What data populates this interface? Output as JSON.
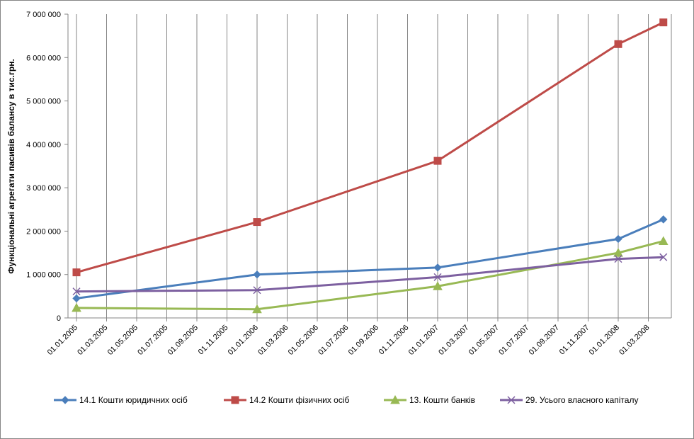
{
  "chart_data": {
    "type": "line",
    "title": "",
    "xlabel": "",
    "ylabel": "Функціональні агрегати пасивів балансу в тис.грн.",
    "x_ticks": [
      "01.01.2005",
      "01.03.2005",
      "01.05.2005",
      "01.07.2005",
      "01.09.2005",
      "01.11.2005",
      "01.01.2006",
      "01.03.2006",
      "01.05.2006",
      "01.07.2006",
      "01.09.2006",
      "01.11.2006",
      "01.01.2007",
      "01.03.2007",
      "01.05.2007",
      "01.07.2007",
      "01.09.2007",
      "01.11.2007",
      "01.01.2008",
      "01.03.2008"
    ],
    "y_ticks": [
      "0",
      "1 000 000",
      "2 000 000",
      "3 000 000",
      "4 000 000",
      "5 000 000",
      "6 000 000",
      "7 000 000"
    ],
    "ylim": [
      0,
      7000000
    ],
    "grid": "vertical",
    "legend_position": "bottom",
    "x": [
      "01.01.2005",
      "01.01.2006",
      "01.01.2007",
      "01.01.2008",
      "01.04.2008"
    ],
    "series": [
      {
        "name": "14.1 Кошти юридичних осіб",
        "color": "#4a7ebb",
        "marker": "diamond",
        "values": [
          450000,
          1000000,
          1160000,
          1820000,
          2270000
        ]
      },
      {
        "name": "14.2 Кошти фізичних осіб",
        "color": "#be4b48",
        "marker": "square",
        "values": [
          1050000,
          2210000,
          3620000,
          6310000,
          6810000
        ]
      },
      {
        "name": "13. Кошти банків",
        "color": "#98b954",
        "marker": "triangle",
        "values": [
          230000,
          200000,
          730000,
          1500000,
          1770000
        ]
      },
      {
        "name": "29. Усього власного капіталу",
        "color": "#7d60a0",
        "marker": "x",
        "values": [
          610000,
          640000,
          940000,
          1360000,
          1400000
        ]
      }
    ]
  }
}
